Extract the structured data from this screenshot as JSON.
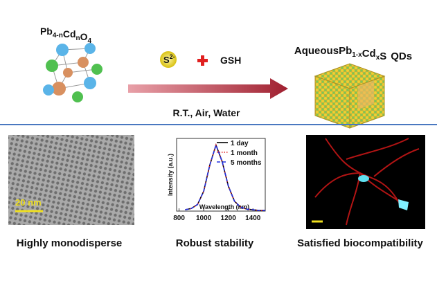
{
  "header": {
    "left_formula": [
      [
        "Pb",
        "4-n"
      ],
      [
        "Cd",
        "n"
      ],
      [
        "O",
        "4"
      ]
    ],
    "right_prefix": "Aqueous",
    "right_formula": [
      [
        "Pb",
        "1-x"
      ],
      [
        "Cd",
        "x"
      ],
      [
        "S"
      ]
    ],
    "right_suffix": "QDs",
    "reagent_ion": [
      "S",
      "2-"
    ],
    "reagent": "GSH",
    "conditions": "R.T., Air, Water"
  },
  "panels": [
    {
      "caption": "Highly monodisperse",
      "scale_bar": "20 nm"
    },
    {
      "caption": "Robust stability"
    },
    {
      "caption": "Satisfied biocompatibility"
    }
  ],
  "chart_data": {
    "type": "line",
    "xlabel": "Wavelength (nm)",
    "ylabel": "Intensity (a.u.)",
    "x": [
      850,
      900,
      950,
      1000,
      1050,
      1100,
      1150,
      1200,
      1250,
      1300,
      1350,
      1400,
      1450,
      1500
    ],
    "series": [
      {
        "name": "1 day",
        "color": "#000000",
        "dash": "solid",
        "values": [
          0.02,
          0.04,
          0.1,
          0.3,
          0.7,
          1.0,
          0.75,
          0.38,
          0.15,
          0.06,
          0.03,
          0.02,
          0.01,
          0.01
        ]
      },
      {
        "name": "1 month",
        "color": "#e02020",
        "dash": "dotted",
        "values": [
          0.02,
          0.04,
          0.1,
          0.3,
          0.7,
          1.0,
          0.75,
          0.38,
          0.15,
          0.06,
          0.03,
          0.02,
          0.01,
          0.01
        ]
      },
      {
        "name": "5 months",
        "color": "#2030e0",
        "dash": "dashed",
        "values": [
          0.02,
          0.04,
          0.1,
          0.3,
          0.7,
          1.0,
          0.75,
          0.38,
          0.15,
          0.06,
          0.03,
          0.02,
          0.01,
          0.01
        ]
      }
    ],
    "xlim": [
      780,
      1500
    ],
    "ylim": [
      0,
      1.1
    ],
    "xticks": [
      800,
      1000,
      1200,
      1400
    ],
    "legend": "upper right"
  }
}
